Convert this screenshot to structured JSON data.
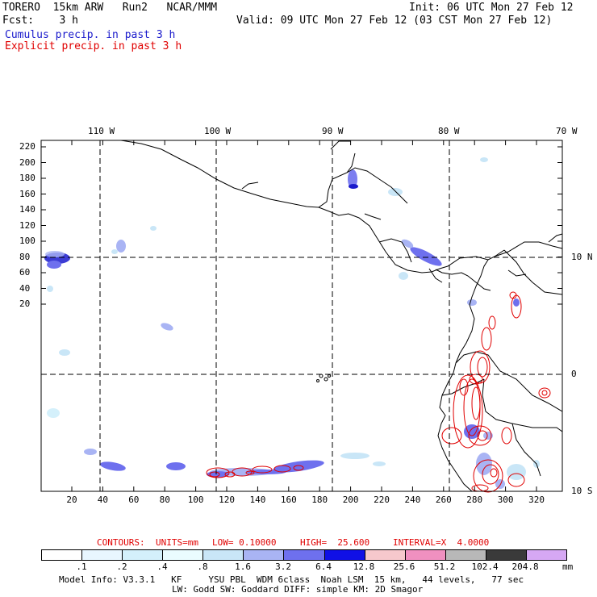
{
  "header": {
    "model": "TORERO  15km ARW   Run2   NCAR/MMM",
    "init": "Init: 06 UTC Mon 27 Feb 12",
    "fcst": "Fcst:    3 h",
    "valid": "Valid: 09 UTC Mon 27 Feb 12 (03 CST Mon 27 Feb 12)",
    "cumulus": "Cumulus precip. in past 3 h",
    "explicit": "Explicit precip. in past 3 h"
  },
  "colors": {
    "cumulus": "#1a1acc",
    "explicit": "#e00000",
    "frame": "#000000",
    "grid": "#000000"
  },
  "map": {
    "top_labels": [
      "110 W",
      "100 W",
      "90 W",
      "80 W",
      "70 W"
    ],
    "right_labels": [
      "10 N",
      "0",
      "10 S"
    ],
    "y_ticks": [
      "220",
      "200",
      "180",
      "160",
      "140",
      "120",
      "100",
      "80",
      "60",
      "40",
      "20"
    ],
    "x_ticks": [
      "20",
      "40",
      "60",
      "80",
      "100",
      "120",
      "140",
      "160",
      "180",
      "200",
      "220",
      "240",
      "260",
      "280",
      "300",
      "320"
    ]
  },
  "contours": {
    "prefix": "CONTOURS:",
    "units": "UNITS=mm",
    "low": "LOW= 0.10000",
    "high": "HIGH=  25.600",
    "interval": "INTERVAL=X  4.0000"
  },
  "legend": {
    "labels": [
      ".1",
      ".2",
      ".4",
      ".8",
      "1.6",
      "3.2",
      "6.4",
      "12.8",
      "25.6",
      "51.2",
      "102.4",
      "204.8"
    ],
    "unit": "mm",
    "colors": [
      "#ffffff",
      "#e8f6ff",
      "#d4f0fb",
      "#eafcff",
      "#c9e6f7",
      "#a9b4f4",
      "#6e70ee",
      "#1010e6",
      "#f6c8cc",
      "#f090c0",
      "#b8b8b8",
      "#3a3a3a",
      "#d6a8f4"
    ]
  },
  "footer": {
    "line1": "Model Info: V3.3.1   KF     YSU PBL  WDM 6class  Noah LSM  15 km,   44 levels,   77 sec",
    "line2": "LW: Godd SW: Goddard DIFF: simple KM: 2D Smagor"
  }
}
